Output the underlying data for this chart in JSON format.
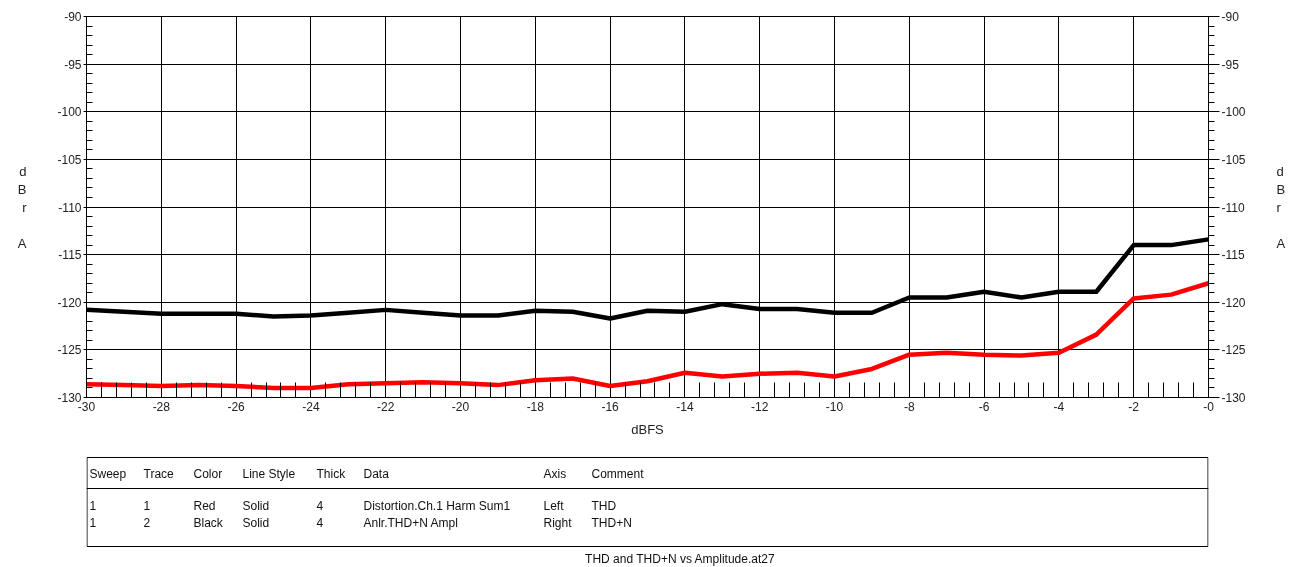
{
  "chart_data": {
    "type": "line",
    "xlabel": "dBFS",
    "ylabel": "dBr A",
    "y2label": "dBr A",
    "x": [
      -30,
      -29,
      -28,
      -27,
      -26,
      -25,
      -24,
      -23,
      -22,
      -21,
      -20,
      -19,
      -18,
      -17,
      -16,
      -15,
      -14,
      -13,
      -12,
      -11,
      -10,
      -9,
      -8,
      -7,
      -6,
      -5,
      -4,
      -3,
      -2,
      -1,
      0
    ],
    "series": [
      {
        "color": "#ff0000",
        "values": [
          -128.6,
          -128.7,
          -128.8,
          -128.7,
          -128.8,
          -129.0,
          -129.0,
          -128.6,
          -128.5,
          -128.4,
          -128.5,
          -128.7,
          -128.2,
          -128.0,
          -128.8,
          -128.3,
          -127.4,
          -127.8,
          -127.5,
          -127.4,
          -127.8,
          -127.0,
          -125.5,
          -125.3,
          -125.5,
          -125.6,
          -125.3,
          -123.4,
          -119.6,
          -119.2,
          -118.0
        ]
      },
      {
        "color": "#000000",
        "values": [
          -120.8,
          -121.0,
          -121.2,
          -121.2,
          -121.2,
          -121.5,
          -121.4,
          -121.1,
          -120.8,
          -121.1,
          -121.4,
          -121.4,
          -120.9,
          -121.0,
          -121.7,
          -120.9,
          -121.0,
          -120.2,
          -120.7,
          -120.7,
          -121.1,
          -121.1,
          -119.5,
          -119.5,
          -118.9,
          -119.5,
          -118.9,
          -118.9,
          -114.0,
          -114.0,
          -113.4
        ]
      }
    ],
    "xlim": [
      -30,
      0
    ],
    "xticks": [
      -30,
      {
        "value": -29.6,
        "label": null
      },
      {
        "value": -29.2,
        "label": null
      },
      {
        "value": -28.8,
        "label": null
      },
      {
        "value": -28.4,
        "label": null
      },
      -28,
      {
        "value": -27.6,
        "label": null
      },
      {
        "value": -27.2,
        "label": null
      },
      {
        "value": -26.8,
        "label": null
      },
      {
        "value": -26.4,
        "label": null
      },
      -26,
      {
        "value": -25.6,
        "label": null
      },
      {
        "value": -25.2,
        "label": null
      },
      {
        "value": -24.8,
        "label": null
      },
      {
        "value": -24.4,
        "label": null
      },
      -24,
      {
        "value": -23.6,
        "label": null
      },
      {
        "value": -23.2,
        "label": null
      },
      {
        "value": -22.8,
        "label": null
      },
      {
        "value": -22.4,
        "label": null
      },
      -22,
      {
        "value": -21.6,
        "label": null
      },
      {
        "value": -21.2,
        "label": null
      },
      {
        "value": -20.8,
        "label": null
      },
      {
        "value": -20.4,
        "label": null
      },
      -20,
      {
        "value": -19.6,
        "label": null
      },
      {
        "value": -19.2,
        "label": null
      },
      {
        "value": -18.8,
        "label": null
      },
      {
        "value": -18.4,
        "label": null
      },
      -18,
      {
        "value": -17.6,
        "label": null
      },
      {
        "value": -17.2,
        "label": null
      },
      {
        "value": -16.8,
        "label": null
      },
      {
        "value": -16.4,
        "label": null
      },
      -16,
      {
        "value": -15.6,
        "label": null
      },
      {
        "value": -15.2,
        "label": null
      },
      {
        "value": -14.8,
        "label": null
      },
      {
        "value": -14.4,
        "label": null
      },
      -14,
      {
        "value": -13.6,
        "label": null
      },
      {
        "value": -13.2,
        "label": null
      },
      {
        "value": -12.8,
        "label": null
      },
      {
        "value": -12.4,
        "label": null
      },
      -12,
      {
        "value": -11.6,
        "label": null
      },
      {
        "value": -11.2,
        "label": null
      },
      {
        "value": -10.8,
        "label": null
      },
      {
        "value": -10.4,
        "label": null
      },
      -10,
      {
        "value": -9.6,
        "label": null
      },
      {
        "value": -9.2,
        "label": null
      },
      {
        "value": -8.8,
        "label": null
      },
      {
        "value": -8.4,
        "label": null
      },
      -8,
      {
        "value": -7.6,
        "label": null
      },
      {
        "value": -7.2,
        "label": null
      },
      {
        "value": -6.8,
        "label": null
      },
      {
        "value": -6.4,
        "label": null
      },
      -6,
      {
        "value": -5.6,
        "label": null
      },
      {
        "value": -5.2,
        "label": null
      },
      {
        "value": -4.8,
        "label": null
      },
      {
        "value": -4.4,
        "label": null
      },
      -4,
      {
        "value": -3.6,
        "label": null
      },
      {
        "value": -3.2,
        "label": null
      },
      {
        "value": -2.8,
        "label": null
      },
      {
        "value": -2.4,
        "label": null
      },
      -2,
      {
        "value": -1.6,
        "label": null
      },
      {
        "value": -1.2,
        "label": null
      },
      {
        "value": -0.8,
        "label": null
      },
      {
        "value": -0.4,
        "label": null
      },
      {
        "value": 0,
        "label": "-0"
      }
    ],
    "ylim": [
      -130,
      -90
    ],
    "yticks": [
      -130,
      {
        "value": -129,
        "label": null
      },
      {
        "value": -128,
        "label": null
      },
      {
        "value": -127,
        "label": null
      },
      {
        "value": -126,
        "label": null
      },
      -125,
      {
        "value": -124,
        "label": null
      },
      {
        "value": -123,
        "label": null
      },
      {
        "value": -122,
        "label": null
      },
      {
        "value": -121,
        "label": null
      },
      -120,
      {
        "value": -119,
        "label": null
      },
      {
        "value": -118,
        "label": null
      },
      {
        "value": -117,
        "label": null
      },
      {
        "value": -116,
        "label": null
      },
      -115,
      {
        "value": -114,
        "label": null
      },
      {
        "value": -113,
        "label": null
      },
      {
        "value": -112,
        "label": null
      },
      {
        "value": -111,
        "label": null
      },
      -110,
      {
        "value": -109,
        "label": null
      },
      {
        "value": -108,
        "label": null
      },
      {
        "value": -107,
        "label": null
      },
      {
        "value": -106,
        "label": null
      },
      -105,
      {
        "value": -104,
        "label": null
      },
      {
        "value": -103,
        "label": null
      },
      {
        "value": -102,
        "label": null
      },
      {
        "value": -101,
        "label": null
      },
      -100,
      {
        "value": -99,
        "label": null
      },
      {
        "value": -98,
        "label": null
      },
      {
        "value": -97,
        "label": null
      },
      {
        "value": -96,
        "label": null
      },
      -95,
      {
        "value": -94,
        "label": null
      },
      {
        "value": -93,
        "label": null
      },
      {
        "value": -92,
        "label": null
      },
      {
        "value": -91,
        "label": null
      },
      -90
    ],
    "y2lim": [
      -130,
      -90
    ],
    "y2ticks": [
      -130,
      {
        "value": -129,
        "label": null
      },
      {
        "value": -128,
        "label": null
      },
      {
        "value": -127,
        "label": null
      },
      {
        "value": -126,
        "label": null
      },
      -125,
      {
        "value": -124,
        "label": null
      },
      {
        "value": -123,
        "label": null
      },
      {
        "value": -122,
        "label": null
      },
      {
        "value": -121,
        "label": null
      },
      -120,
      {
        "value": -119,
        "label": null
      },
      {
        "value": -118,
        "label": null
      },
      {
        "value": -117,
        "label": null
      },
      {
        "value": -116,
        "label": null
      },
      -115,
      {
        "value": -114,
        "label": null
      },
      {
        "value": -113,
        "label": null
      },
      {
        "value": -112,
        "label": null
      },
      {
        "value": -111,
        "label": null
      },
      -110,
      {
        "value": -109,
        "label": null
      },
      {
        "value": -108,
        "label": null
      },
      {
        "value": -107,
        "label": null
      },
      {
        "value": -106,
        "label": null
      },
      -105,
      {
        "value": -104,
        "label": null
      },
      {
        "value": -103,
        "label": null
      },
      {
        "value": -102,
        "label": null
      },
      {
        "value": -101,
        "label": null
      },
      -100,
      {
        "value": -99,
        "label": null
      },
      {
        "value": -98,
        "label": null
      },
      {
        "value": -97,
        "label": null
      },
      {
        "value": -96,
        "label": null
      },
      -95,
      {
        "value": -94,
        "label": null
      },
      {
        "value": -93,
        "label": null
      },
      {
        "value": -92,
        "label": null
      },
      {
        "value": -91,
        "label": null
      },
      -90
    ],
    "grid": true,
    "line_style": "solid",
    "annotations": [
      "Sweep",
      "Trace",
      "Color",
      "Line Style",
      "Thick",
      "Data",
      "Axis",
      "Comment",
      "1",
      "1",
      "Red",
      "Solid",
      "4",
      "Distortion.Ch.1 Harm Sum1",
      "Left",
      "THD",
      "1",
      "2",
      "Black",
      "Solid",
      "4",
      "Anlr.THD+N Ampl",
      "Right",
      "THD+N",
      "THD and THD+N vs Amplitude.at27"
    ]
  }
}
